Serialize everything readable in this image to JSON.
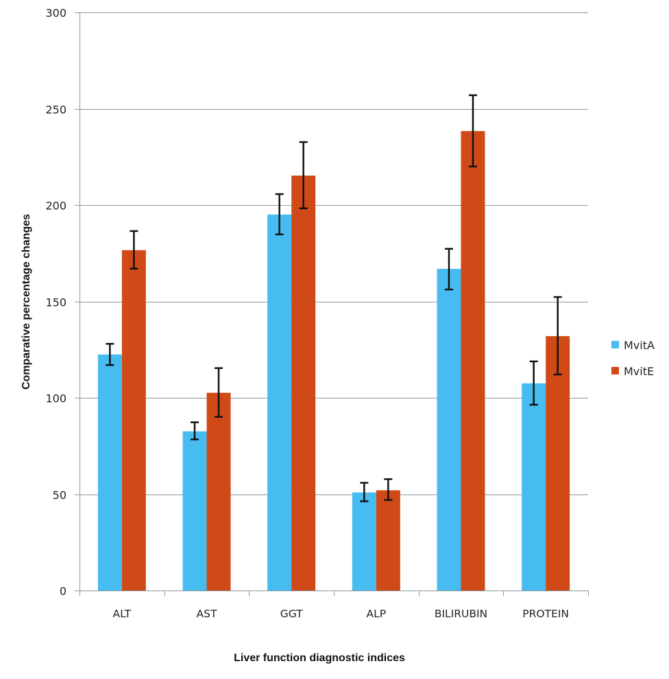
{
  "chart_data": {
    "type": "bar",
    "title": "",
    "xlabel": "Liver function diagnostic indices",
    "ylabel": "Comparative percentage changes",
    "ylim": [
      0,
      300
    ],
    "yticks": [
      0,
      50,
      100,
      150,
      200,
      250,
      300
    ],
    "grid": true,
    "legend_position": "right",
    "categories": [
      "ALT",
      "AST",
      "GGT",
      "ALP",
      "BILIRUBIN",
      "PROTEIN"
    ],
    "series": [
      {
        "name": "MvitA",
        "color": "#47BCF0",
        "values": [
          122.5,
          82.6,
          195.1,
          50.9,
          166.9,
          107.5
        ],
        "error_low": [
          117,
          78.4,
          184.8,
          46.3,
          156.2,
          96.4
        ],
        "error_high": [
          128,
          87.3,
          205.7,
          55.9,
          177.3,
          118.9
        ]
      },
      {
        "name": "MvitE",
        "color": "#D04A17",
        "values": [
          176.6,
          102.6,
          215.3,
          52,
          238.4,
          132
        ],
        "error_low": [
          167,
          90.1,
          198.3,
          47,
          220,
          112.1
        ],
        "error_high": [
          186.5,
          115.4,
          232.7,
          57.8,
          257,
          152.3
        ]
      }
    ]
  },
  "colors": {
    "grid": "#8A9A9E",
    "axis": "#8A9A9E",
    "error_bar": "#111111"
  }
}
